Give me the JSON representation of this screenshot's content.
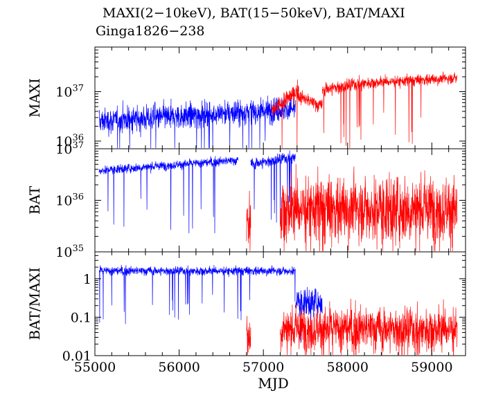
{
  "title": "MAXI(2−10keV), BAT(15−50keV), BAT/MAXI",
  "subtitle": "Ginga1826−238",
  "chart_data": [
    {
      "type": "line",
      "panel": "top",
      "ylabel": "MAXI",
      "yscale": "log",
      "ylim": [
        7e+35,
        8e+37
      ],
      "yticks": [
        {
          "v": 1e+36,
          "base": "10",
          "exp": "36"
        },
        {
          "v": 1e+37,
          "base": "10",
          "exp": "37"
        }
      ],
      "xlim": [
        55000,
        59400
      ],
      "series": [
        {
          "color": "#0000ff",
          "segments": [
            [
              55050,
              57380,
              2.5e+36,
              0.18,
              4.5e+36
            ]
          ]
        },
        {
          "color": "#ff0000",
          "segments": [
            [
              57100,
              57420,
              4e+36,
              0.12,
              1.1e+37
            ],
            [
              57420,
              57700,
              8e+36,
              0.1,
              5e+36
            ],
            [
              57700,
              58200,
              1.1e+37,
              0.1,
              1.5e+37
            ],
            [
              58200,
              59300,
              1.5e+37,
              0.08,
              1.9e+37
            ]
          ]
        }
      ]
    },
    {
      "type": "line",
      "panel": "middle",
      "ylabel": "BAT",
      "yscale": "log",
      "ylim": [
        1e+35,
        1e+37
      ],
      "yticks": [
        {
          "v": 1e+35,
          "base": "10",
          "exp": "35"
        },
        {
          "v": 1e+36,
          "base": "10",
          "exp": "36"
        },
        {
          "v": 1e+37,
          "base": "10",
          "exp": "37"
        }
      ],
      "xlim": [
        55000,
        59400
      ],
      "series": [
        {
          "color": "#0000ff",
          "segments": [
            [
              55050,
              56700,
              3.8e+36,
              0.06,
              6e+36
            ],
            [
              56850,
              57380,
              5e+36,
              0.08,
              7e+36
            ]
          ]
        },
        {
          "color": "#ff0000",
          "segments": [
            [
              56800,
              56850,
              4e+35,
              0.45,
              4e+35
            ],
            [
              57200,
              59300,
              7e+35,
              0.45,
              7e+35
            ]
          ]
        }
      ]
    },
    {
      "type": "line",
      "panel": "bottom",
      "ylabel": "BAT/MAXI",
      "yscale": "log",
      "ylim": [
        0.01,
        5
      ],
      "yticks": [
        {
          "v": 0.01,
          "label": "0.01"
        },
        {
          "v": 0.1,
          "label": "0.1"
        },
        {
          "v": 1,
          "label": "1"
        }
      ],
      "xlim": [
        55000,
        59400
      ],
      "xlabel": "MJD",
      "xticks": [
        55000,
        56000,
        57000,
        58000,
        59000
      ],
      "series": [
        {
          "color": "#0000ff",
          "segments": [
            [
              55050,
              57380,
              1.6,
              0.08,
              1.6
            ],
            [
              57380,
              57700,
              0.25,
              0.25,
              0.25
            ]
          ]
        },
        {
          "color": "#ff0000",
          "segments": [
            [
              56800,
              56850,
              0.03,
              0.4,
              0.03
            ],
            [
              57200,
              59300,
              0.05,
              0.4,
              0.05
            ]
          ]
        }
      ]
    }
  ]
}
